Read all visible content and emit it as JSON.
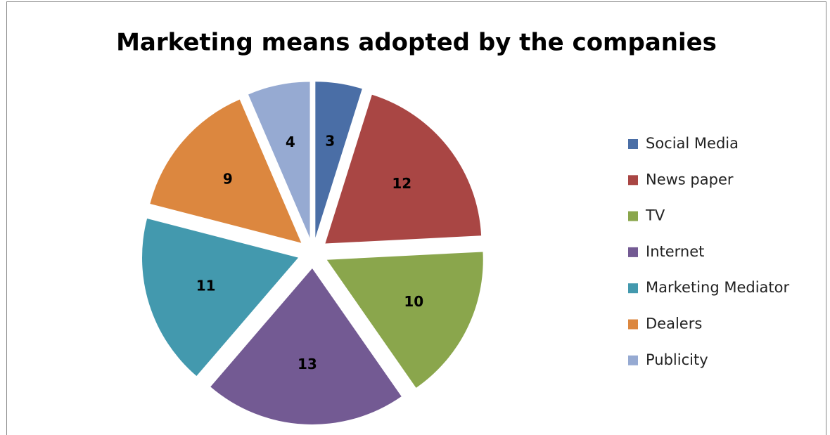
{
  "chart_data": {
    "type": "pie",
    "title": "Marketing means adopted by the companies",
    "categories": [
      "Social Media",
      "News paper",
      "TV",
      "Internet",
      "Marketing Mediator",
      "Dealers",
      "Publicity"
    ],
    "values": [
      3,
      12,
      10,
      13,
      11,
      9,
      4
    ],
    "colors": [
      "#4a6ea6",
      "#a94644",
      "#8aa64c",
      "#735a93",
      "#4399ae",
      "#dc873f",
      "#96aad2"
    ],
    "legend": "right"
  }
}
